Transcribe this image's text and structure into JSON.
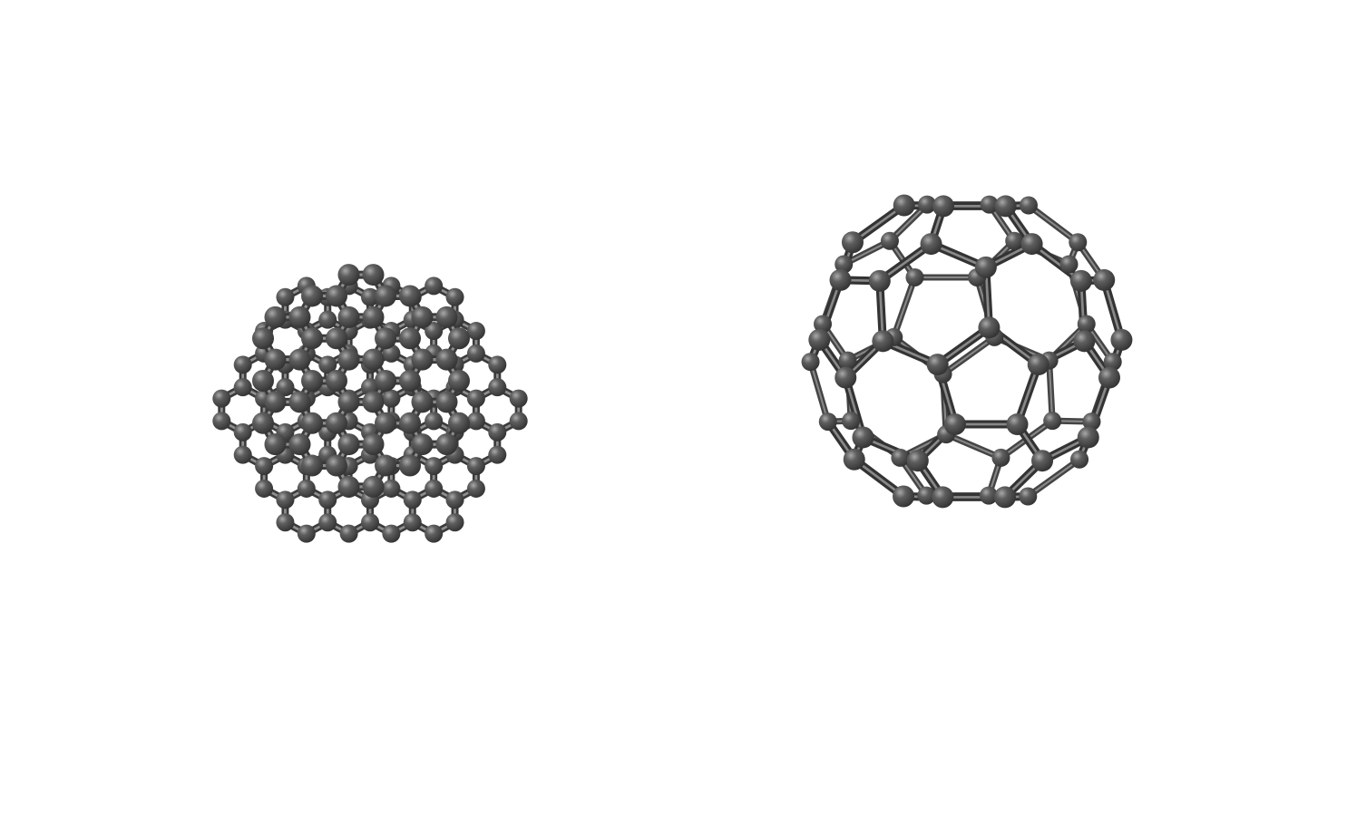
{
  "scene": {
    "background": "#ffffff",
    "atom_color": "#4a4a4a",
    "atom_highlight": "#9a9a9a",
    "bond_color": "#5a5a5a",
    "bond_highlight": "#b4b4b4",
    "molecules": [
      {
        "name": "large-fullerene",
        "shape": "icosahedral-cage-with-hexagonal-rings"
      },
      {
        "name": "small-fullerene",
        "shape": "truncated-icosahedron-cage"
      }
    ]
  }
}
